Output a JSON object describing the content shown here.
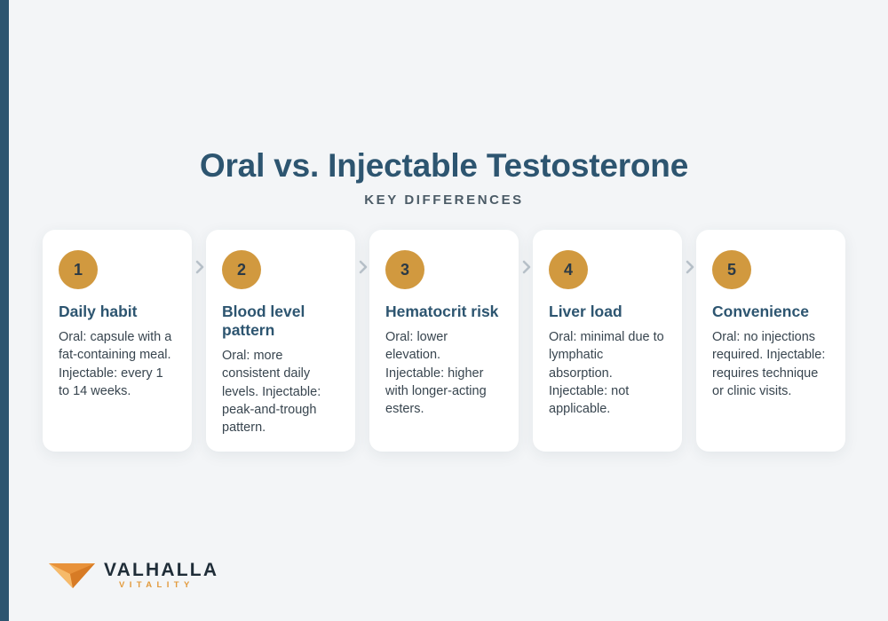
{
  "title": "Oral vs. Injectable Testosterone",
  "subtitle": "KEY DIFFERENCES",
  "steps": [
    {
      "number": "1",
      "heading": "Daily habit",
      "text": "Oral: capsule with a fat-containing meal. Injectable: every 1 to 14 weeks."
    },
    {
      "number": "2",
      "heading": "Blood level pattern",
      "text": "Oral: more consistent daily levels. Injectable: peak-and-trough pattern."
    },
    {
      "number": "3",
      "heading": "Hematocrit risk",
      "text": "Oral: lower elevation. Injectable: higher with longer-acting esters."
    },
    {
      "number": "4",
      "heading": "Liver load",
      "text": "Oral: minimal due to lymphatic absorption. Injectable: not applicable."
    },
    {
      "number": "5",
      "heading": "Convenience",
      "text": "Oral: no injections required. Injectable: requires technique or clinic visits."
    }
  ],
  "brand": {
    "name": "VALHALLA",
    "tagline": "VITALITY"
  },
  "colors": {
    "accent": "#d1993f",
    "primary": "#2d5570",
    "background": "#f3f5f7",
    "card": "#ffffff",
    "logo_orange": "#e29a3c"
  },
  "icons": {
    "connector": "chevron-right-icon",
    "brand_mark": "valhalla-logo-icon"
  }
}
